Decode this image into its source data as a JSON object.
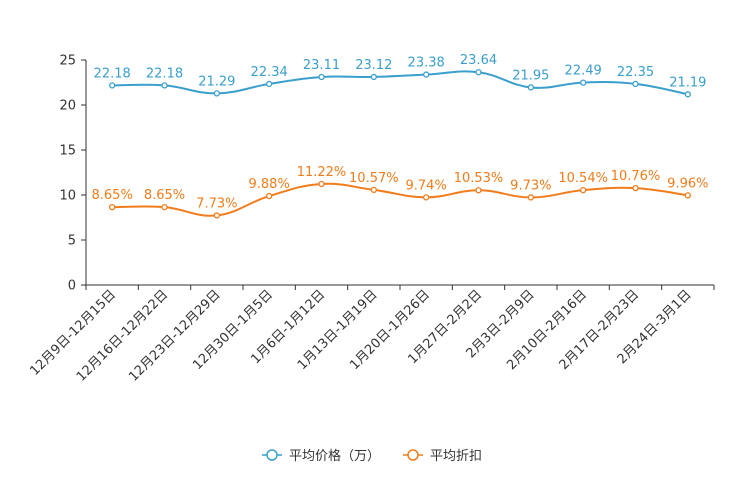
{
  "chart_data": {
    "type": "line",
    "categories": [
      "12月9日-12月15日",
      "12月16日-12月22日",
      "12月23日-12月29日",
      "12月30日-1月5日",
      "1月6日-1月12日",
      "1月13日-1月19日",
      "1月20日-1月26日",
      "1月27日-2月2日",
      "2月3日-2月9日",
      "2月10日-2月16日",
      "2月17日-2月23日",
      "2月24日-3月1日"
    ],
    "series": [
      {
        "name": "平均价格（万）",
        "values": [
          22.18,
          22.18,
          21.29,
          22.34,
          23.11,
          23.12,
          23.38,
          23.64,
          21.95,
          22.49,
          22.35,
          21.19
        ],
        "labels": [
          "22.18",
          "22.18",
          "21.29",
          "22.34",
          "23.11",
          "23.12",
          "23.38",
          "23.64",
          "21.95",
          "22.49",
          "22.35",
          "21.19"
        ],
        "color": "#3a9fcd"
      },
      {
        "name": "平均折扣",
        "values": [
          8.65,
          8.65,
          7.73,
          9.88,
          11.22,
          10.57,
          9.74,
          10.53,
          9.73,
          10.54,
          10.76,
          9.96
        ],
        "labels": [
          "8.65%",
          "8.65%",
          "7.73%",
          "9.88%",
          "11.22%",
          "10.57%",
          "9.74%",
          "10.53%",
          "9.73%",
          "10.54%",
          "10.76%",
          "9.96%"
        ],
        "color": "#f07c1c"
      }
    ],
    "yticks": [
      "0",
      "5",
      "10",
      "15",
      "20",
      "25"
    ],
    "ylim": [
      0,
      25
    ],
    "title": "",
    "xlabel": "",
    "ylabel": "",
    "legend_position": "bottom-center"
  }
}
